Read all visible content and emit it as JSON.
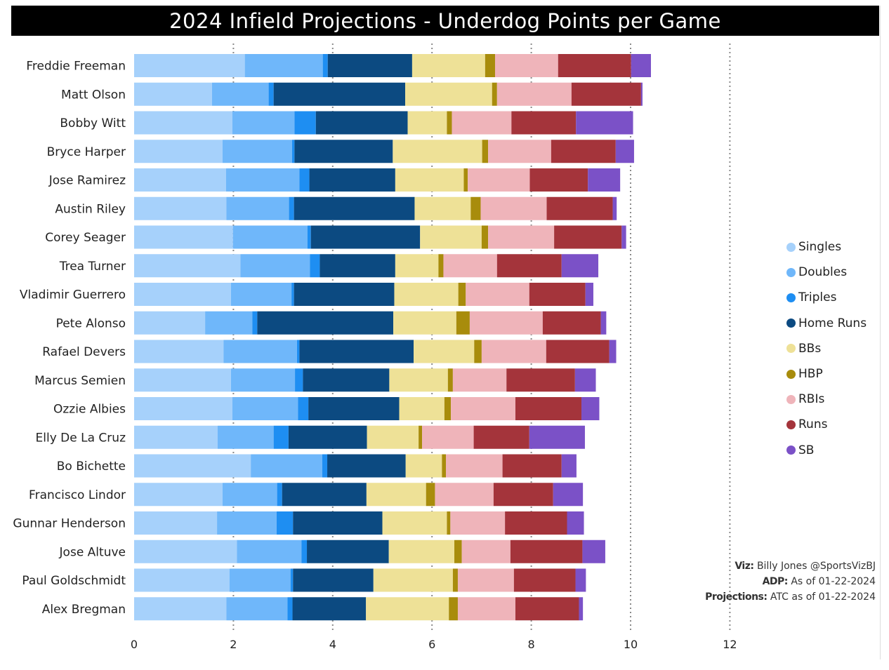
{
  "title": "2024 Infield Projections - Underdog Points per Game",
  "credits": {
    "viz_label": "Viz:",
    "viz_value": "Billy Jones @SportsVizBJ",
    "adp_label": "ADP:",
    "adp_value": "As of 01-22-2024",
    "proj_label": "Projections:",
    "proj_value": "ATC as of 01-22-2024"
  },
  "chart_data": {
    "type": "bar",
    "orientation": "horizontal",
    "stacked": true,
    "title": "2024 Infield Projections - Underdog Points per Game",
    "xlabel": "",
    "ylabel": "",
    "xlim": [
      0,
      12
    ],
    "xticks": [
      "0",
      "2",
      "4",
      "6",
      "8",
      "10",
      "12"
    ],
    "gridlines": [
      2,
      4,
      6,
      8,
      10,
      12
    ],
    "legend_position": "right",
    "categories": [
      "Freddie Freeman",
      "Matt Olson",
      "Bobby Witt",
      "Bryce Harper",
      "Jose Ramirez",
      "Austin Riley",
      "Corey Seager",
      "Trea Turner",
      "Vladimir Guerrero",
      "Pete Alonso",
      "Rafael Devers",
      "Marcus Semien",
      "Ozzie Albies",
      "Elly De La Cruz",
      "Bo Bichette",
      "Francisco Lindor",
      "Gunnar Henderson",
      "Jose Altuve",
      "Paul Goldschmidt",
      "Alex Bregman"
    ],
    "series": [
      {
        "name": "Singles",
        "color": "#a6d1fb",
        "values": [
          2.23,
          1.57,
          1.98,
          1.78,
          1.85,
          1.86,
          1.99,
          2.14,
          1.95,
          1.43,
          1.8,
          1.95,
          1.98,
          1.68,
          2.35,
          1.78,
          1.67,
          2.07,
          1.92,
          1.86
        ]
      },
      {
        "name": "Doubles",
        "color": "#6fb7fa",
        "values": [
          1.57,
          1.14,
          1.25,
          1.4,
          1.48,
          1.26,
          1.5,
          1.4,
          1.22,
          0.95,
          1.48,
          1.29,
          1.32,
          1.13,
          1.44,
          1.1,
          1.2,
          1.3,
          1.23,
          1.23
        ]
      },
      {
        "name": "Triples",
        "color": "#1e8ef2",
        "values": [
          0.1,
          0.1,
          0.43,
          0.05,
          0.2,
          0.1,
          0.07,
          0.2,
          0.05,
          0.1,
          0.05,
          0.16,
          0.21,
          0.3,
          0.1,
          0.1,
          0.33,
          0.11,
          0.05,
          0.1
        ]
      },
      {
        "name": "Home Runs",
        "color": "#0c4a81",
        "values": [
          1.7,
          2.65,
          1.85,
          1.98,
          1.73,
          2.43,
          2.2,
          1.52,
          2.02,
          2.74,
          2.3,
          1.74,
          1.83,
          1.58,
          1.58,
          1.7,
          1.8,
          1.65,
          1.62,
          1.48
        ]
      },
      {
        "name": "BBs",
        "color": "#eee197",
        "values": [
          1.47,
          1.75,
          0.79,
          1.8,
          1.38,
          1.13,
          1.24,
          0.87,
          1.29,
          1.27,
          1.22,
          1.18,
          0.91,
          1.04,
          0.73,
          1.2,
          1.3,
          1.32,
          1.6,
          1.67
        ]
      },
      {
        "name": "HBP",
        "color": "#a88c0c",
        "values": [
          0.2,
          0.1,
          0.1,
          0.12,
          0.08,
          0.2,
          0.13,
          0.1,
          0.15,
          0.27,
          0.15,
          0.1,
          0.13,
          0.07,
          0.08,
          0.18,
          0.07,
          0.15,
          0.1,
          0.18
        ]
      },
      {
        "name": "RBIs",
        "color": "#efb4ba",
        "values": [
          1.27,
          1.5,
          1.2,
          1.27,
          1.25,
          1.33,
          1.33,
          1.08,
          1.28,
          1.47,
          1.3,
          1.08,
          1.3,
          1.04,
          1.14,
          1.18,
          1.1,
          0.98,
          1.13,
          1.16
        ]
      },
      {
        "name": "Runs",
        "color": "#a4343b",
        "values": [
          1.47,
          1.4,
          1.3,
          1.3,
          1.17,
          1.33,
          1.36,
          1.3,
          1.13,
          1.17,
          1.27,
          1.38,
          1.33,
          1.12,
          1.19,
          1.2,
          1.25,
          1.45,
          1.24,
          1.28
        ]
      },
      {
        "name": "SB",
        "color": "#7b51c7",
        "values": [
          0.4,
          0.03,
          1.15,
          0.37,
          0.65,
          0.08,
          0.09,
          0.74,
          0.16,
          0.11,
          0.14,
          0.42,
          0.36,
          1.12,
          0.3,
          0.6,
          0.34,
          0.46,
          0.21,
          0.08
        ]
      }
    ]
  }
}
